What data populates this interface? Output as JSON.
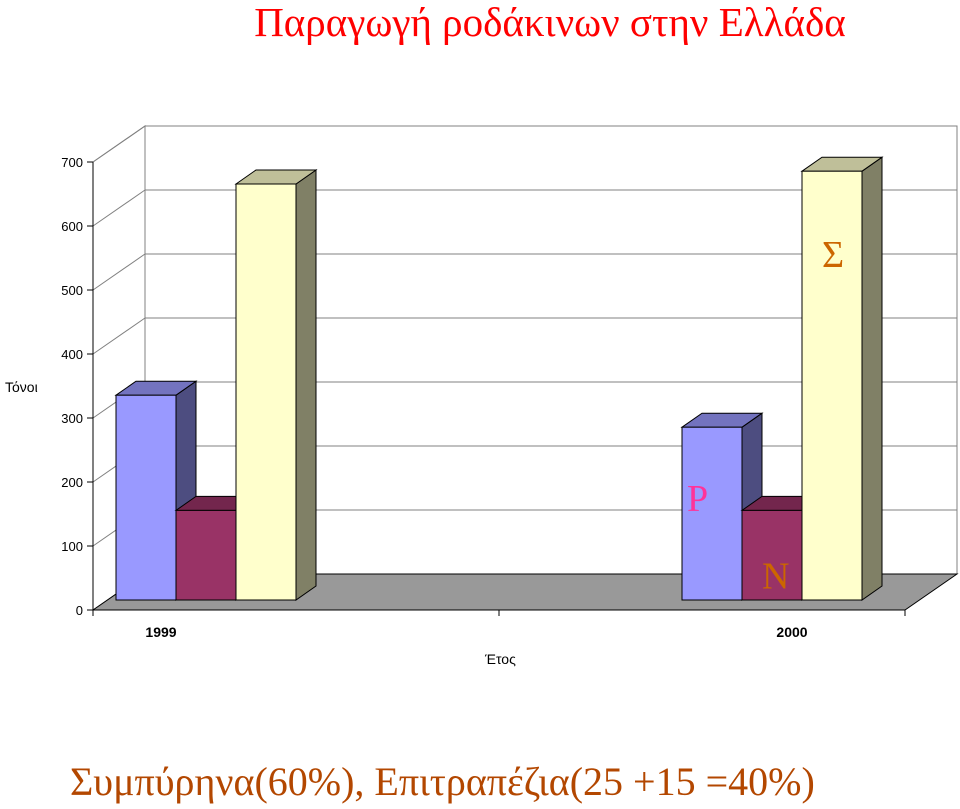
{
  "chart_data": {
    "type": "bar",
    "title": "Παραγωγή ροδάκινων στην Ελλάδα",
    "xlabel": "Έτος",
    "ylabel": "Τόνοι",
    "categories": [
      "1999",
      "2000"
    ],
    "ylim": [
      0,
      700
    ],
    "yticks": [
      0,
      100,
      200,
      300,
      400,
      500,
      600,
      700
    ],
    "grid": true,
    "series": [
      {
        "name": "Ρ",
        "color": "#9999ff",
        "values": [
          320,
          270
        ]
      },
      {
        "name": "Ν",
        "color": "#993366",
        "values": [
          140,
          140
        ]
      },
      {
        "name": "Σ",
        "color": "#ffffcc",
        "values": [
          650,
          670
        ]
      }
    ],
    "annotations": [
      {
        "text": "Ρ",
        "color": "#ff3399"
      },
      {
        "text": "Ν",
        "color": "#cc6600"
      },
      {
        "text": "Σ",
        "color": "#cc6600"
      }
    ]
  },
  "caption": "Συμπύρηνα(60%), Επιτραπέζια(25 +15 =40%)"
}
